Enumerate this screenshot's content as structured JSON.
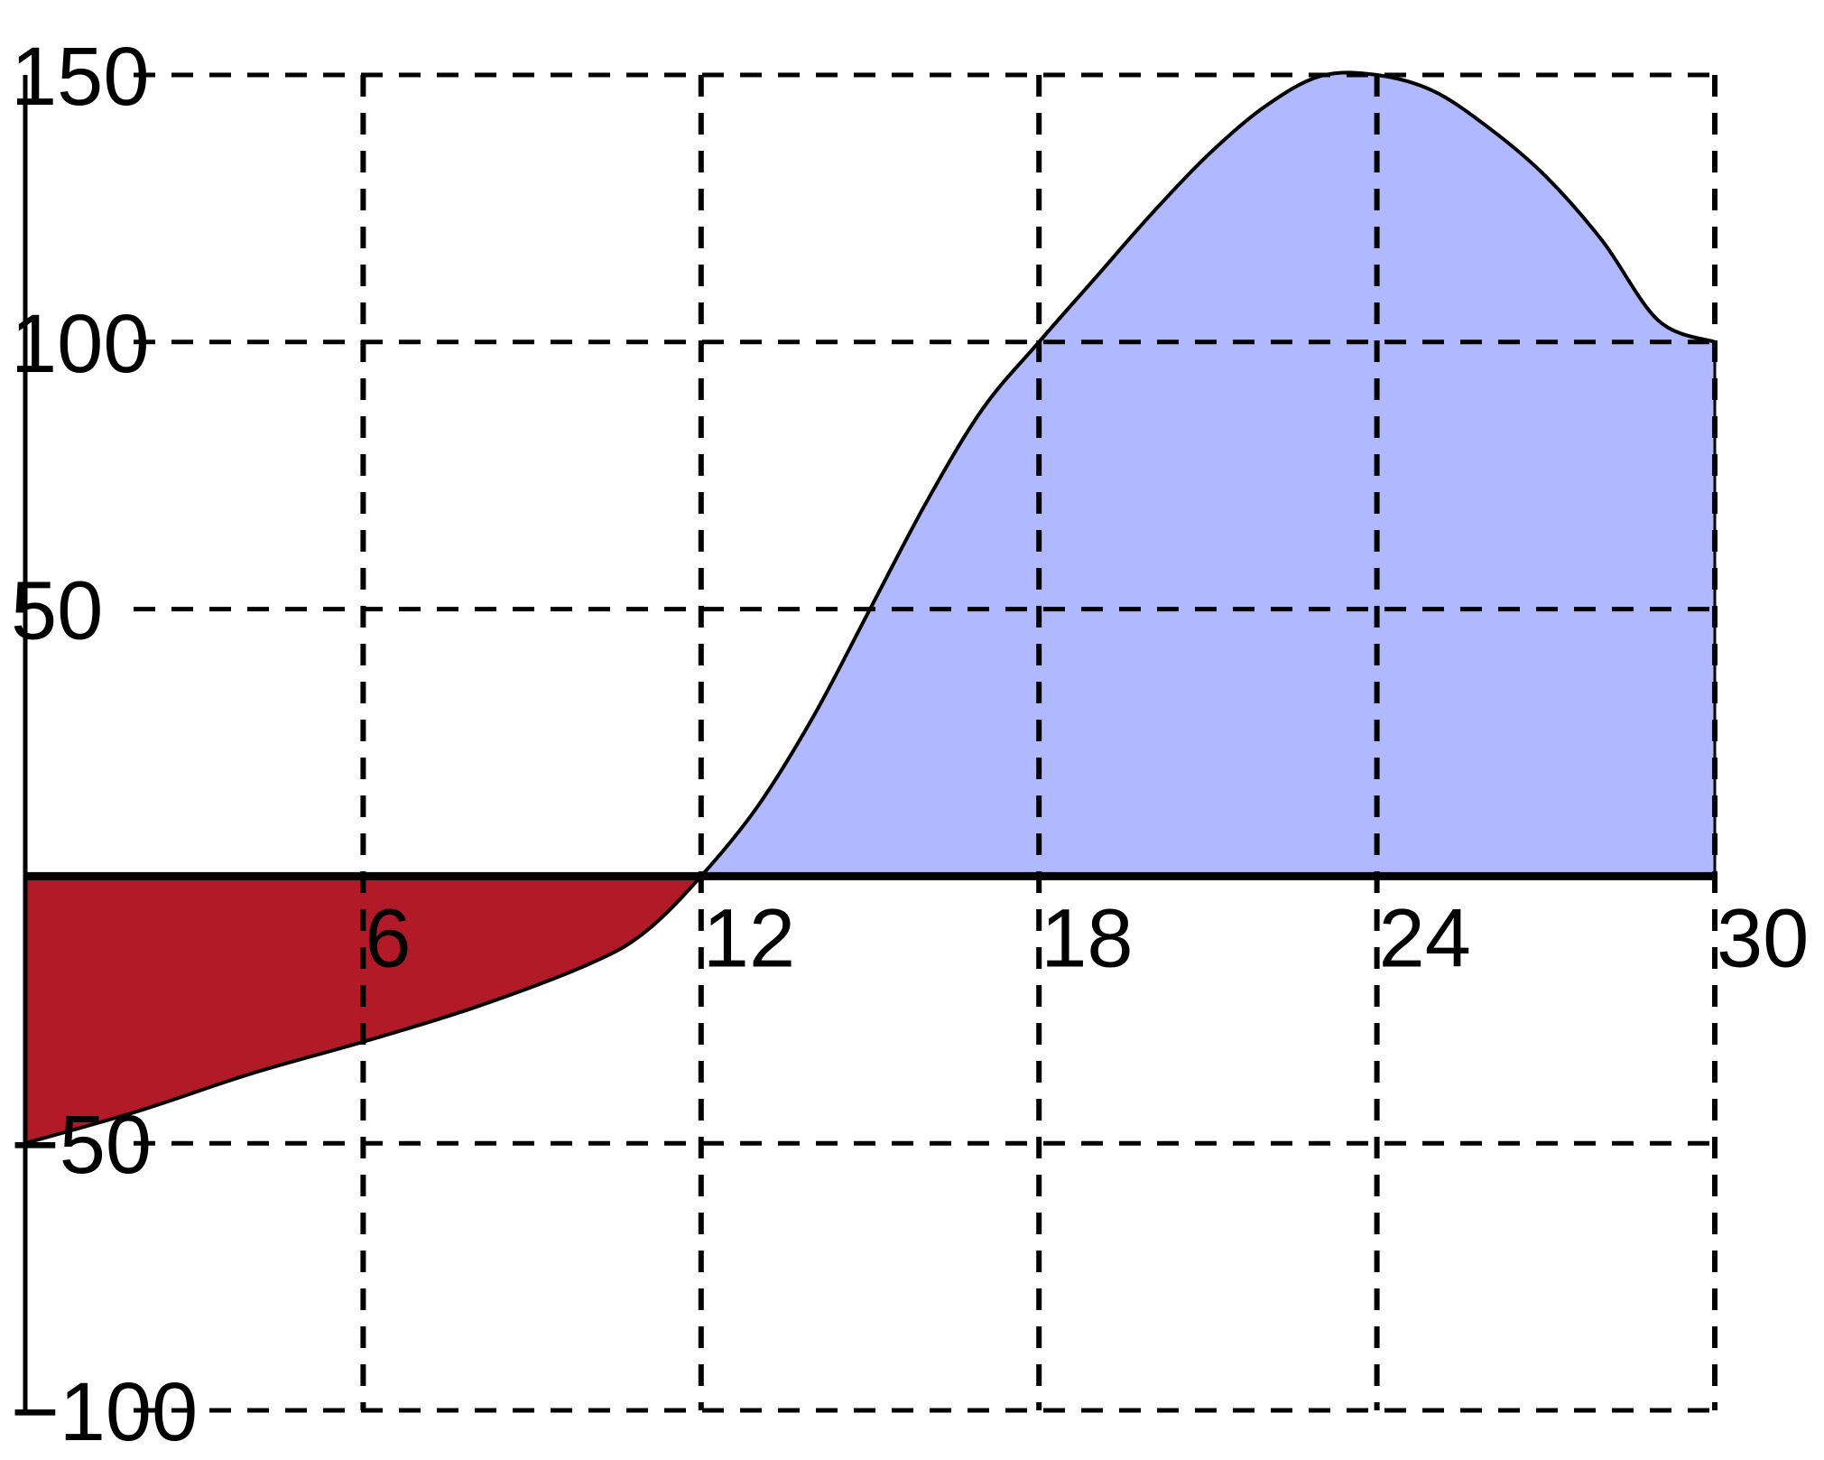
{
  "chart_data": {
    "type": "area",
    "title": "",
    "xlabel": "",
    "ylabel": "",
    "xlim": [
      0,
      30
    ],
    "ylim": [
      -100,
      150
    ],
    "x_ticks": [
      6,
      12,
      18,
      24,
      30
    ],
    "x_tick_labels": [
      "6",
      "12",
      "18",
      "24",
      "30"
    ],
    "y_ticks": [
      150,
      100,
      50,
      -50,
      -100
    ],
    "y_tick_labels": [
      "150",
      "100",
      "50",
      "−50",
      "−100"
    ],
    "grid": true,
    "grid_style": "dashed",
    "legend": "none",
    "baseline": 0,
    "series": [
      {
        "x": [
          0,
          2,
          4,
          6,
          8,
          10,
          11,
          12,
          13,
          14,
          15,
          16,
          17,
          18,
          19,
          20,
          21,
          22,
          23,
          24,
          25,
          26,
          27,
          28,
          29,
          30
        ],
        "y": [
          -50,
          -44,
          -37,
          -31,
          -24.5,
          -16.5,
          -10.5,
          0,
          13,
          30,
          50,
          70,
          87.5,
          100,
          112,
          124,
          135,
          144,
          149.8,
          150,
          147,
          140,
          131,
          119,
          104,
          100
        ]
      }
    ],
    "fill_colors": {
      "positive": "#b0b8ff",
      "negative": "#b31a28"
    },
    "line_color": "#000000"
  }
}
